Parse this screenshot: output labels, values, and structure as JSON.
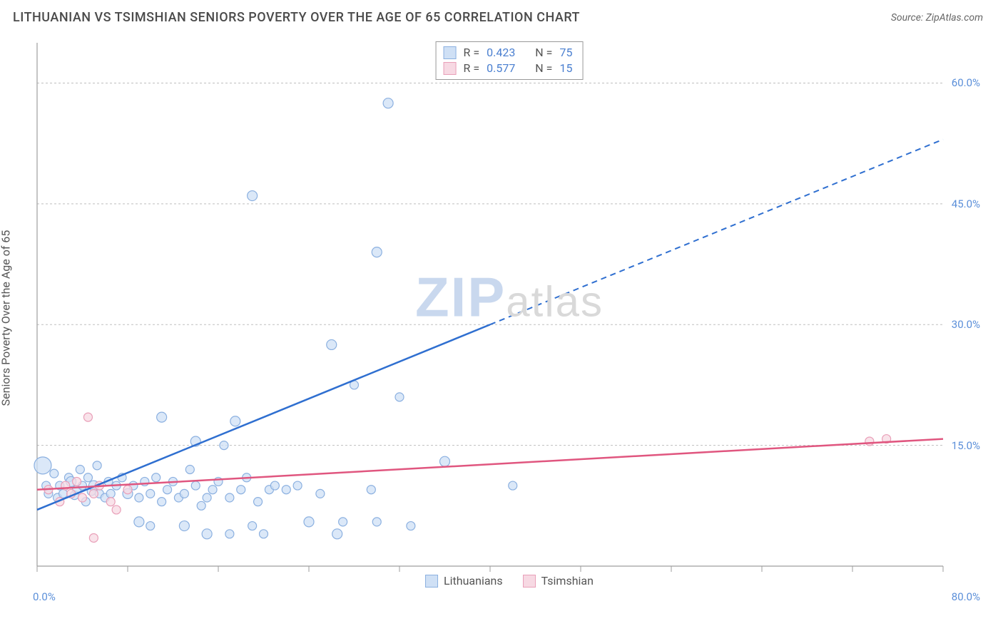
{
  "header": {
    "title": "LITHUANIAN VS TSIMSHIAN SENIORS POVERTY OVER THE AGE OF 65 CORRELATION CHART",
    "source_prefix": "Source: ",
    "source_name": "ZipAtlas.com"
  },
  "yaxis_label": "Seniors Poverty Over the Age of 65",
  "watermark": {
    "zip": "ZIP",
    "atlas": "atlas"
  },
  "chart": {
    "type": "scatter",
    "background_color": "#ffffff",
    "xlim": [
      0,
      80
    ],
    "ylim": [
      0,
      65
    ],
    "xtick_min": "0.0%",
    "xtick_max": "80.0%",
    "xtick_positions": [
      0,
      8,
      16,
      24,
      32,
      40,
      48,
      56,
      64,
      72,
      80
    ],
    "yticks": [
      {
        "v": 15,
        "label": "15.0%"
      },
      {
        "v": 30,
        "label": "30.0%"
      },
      {
        "v": 45,
        "label": "45.0%"
      },
      {
        "v": 60,
        "label": "60.0%"
      }
    ],
    "grid_color": "#bfbfbf",
    "axis_color": "#9e9e9e",
    "tick_label_color": "#5b8fd9",
    "series": [
      {
        "key": "lith",
        "label": "Lithuanians",
        "fill": "#cfe0f5",
        "stroke": "#8bb0e0",
        "line_color": "#2f6fd0",
        "r_value": "0.423",
        "n_value": "75",
        "trend": {
          "x1": 0,
          "y1": 7.0,
          "x2": 80,
          "y2": 53.0,
          "solid_until_x": 40
        },
        "points": [
          {
            "x": 0.5,
            "y": 12.5,
            "r": 12
          },
          {
            "x": 0.8,
            "y": 10.0,
            "r": 6
          },
          {
            "x": 1.0,
            "y": 9.0,
            "r": 6
          },
          {
            "x": 1.5,
            "y": 11.5,
            "r": 6
          },
          {
            "x": 1.8,
            "y": 8.5,
            "r": 6
          },
          {
            "x": 2.0,
            "y": 10.0,
            "r": 6
          },
          {
            "x": 2.3,
            "y": 9.0,
            "r": 6
          },
          {
            "x": 2.8,
            "y": 11.0,
            "r": 6
          },
          {
            "x": 3.0,
            "y": 10.5,
            "r": 7
          },
          {
            "x": 3.3,
            "y": 8.8,
            "r": 6
          },
          {
            "x": 3.5,
            "y": 9.5,
            "r": 6
          },
          {
            "x": 3.8,
            "y": 12.0,
            "r": 6
          },
          {
            "x": 4.0,
            "y": 10.0,
            "r": 6
          },
          {
            "x": 4.3,
            "y": 8.0,
            "r": 6
          },
          {
            "x": 4.5,
            "y": 11.0,
            "r": 6
          },
          {
            "x": 4.8,
            "y": 9.3,
            "r": 6
          },
          {
            "x": 5.0,
            "y": 10.0,
            "r": 7
          },
          {
            "x": 5.3,
            "y": 12.5,
            "r": 6
          },
          {
            "x": 5.5,
            "y": 9.0,
            "r": 6
          },
          {
            "x": 6.0,
            "y": 8.5,
            "r": 6
          },
          {
            "x": 6.3,
            "y": 10.5,
            "r": 6
          },
          {
            "x": 6.5,
            "y": 9.0,
            "r": 6
          },
          {
            "x": 7.0,
            "y": 10.0,
            "r": 6
          },
          {
            "x": 7.5,
            "y": 11.0,
            "r": 6
          },
          {
            "x": 8.0,
            "y": 9.0,
            "r": 7
          },
          {
            "x": 8.5,
            "y": 10.0,
            "r": 6
          },
          {
            "x": 9.0,
            "y": 5.5,
            "r": 7
          },
          {
            "x": 9.0,
            "y": 8.5,
            "r": 6
          },
          {
            "x": 9.5,
            "y": 10.5,
            "r": 6
          },
          {
            "x": 10.0,
            "y": 9.0,
            "r": 6
          },
          {
            "x": 10.0,
            "y": 5.0,
            "r": 6
          },
          {
            "x": 10.5,
            "y": 11.0,
            "r": 6
          },
          {
            "x": 11.0,
            "y": 8.0,
            "r": 6
          },
          {
            "x": 11.0,
            "y": 18.5,
            "r": 7
          },
          {
            "x": 11.5,
            "y": 9.5,
            "r": 6
          },
          {
            "x": 12.0,
            "y": 10.5,
            "r": 6
          },
          {
            "x": 12.5,
            "y": 8.5,
            "r": 6
          },
          {
            "x": 13.0,
            "y": 9.0,
            "r": 6
          },
          {
            "x": 13.0,
            "y": 5.0,
            "r": 7
          },
          {
            "x": 13.5,
            "y": 12.0,
            "r": 6
          },
          {
            "x": 14.0,
            "y": 10.0,
            "r": 6
          },
          {
            "x": 14.0,
            "y": 15.5,
            "r": 7
          },
          {
            "x": 14.5,
            "y": 7.5,
            "r": 6
          },
          {
            "x": 15.0,
            "y": 4.0,
            "r": 7
          },
          {
            "x": 15.0,
            "y": 8.5,
            "r": 6
          },
          {
            "x": 15.5,
            "y": 9.5,
            "r": 6
          },
          {
            "x": 16.0,
            "y": 10.5,
            "r": 6
          },
          {
            "x": 16.5,
            "y": 15.0,
            "r": 6
          },
          {
            "x": 17.0,
            "y": 8.5,
            "r": 6
          },
          {
            "x": 17.0,
            "y": 4.0,
            "r": 6
          },
          {
            "x": 17.5,
            "y": 18.0,
            "r": 7
          },
          {
            "x": 18.0,
            "y": 9.5,
            "r": 6
          },
          {
            "x": 18.5,
            "y": 11.0,
            "r": 6
          },
          {
            "x": 19.0,
            "y": 5.0,
            "r": 6
          },
          {
            "x": 19.0,
            "y": 46.0,
            "r": 7
          },
          {
            "x": 19.5,
            "y": 8.0,
            "r": 6
          },
          {
            "x": 20.0,
            "y": 4.0,
            "r": 6
          },
          {
            "x": 20.5,
            "y": 9.5,
            "r": 6
          },
          {
            "x": 21.0,
            "y": 10.0,
            "r": 6
          },
          {
            "x": 22.0,
            "y": 9.5,
            "r": 6
          },
          {
            "x": 23.0,
            "y": 10.0,
            "r": 6
          },
          {
            "x": 24.0,
            "y": 5.5,
            "r": 7
          },
          {
            "x": 25.0,
            "y": 9.0,
            "r": 6
          },
          {
            "x": 26.0,
            "y": 27.5,
            "r": 7
          },
          {
            "x": 26.5,
            "y": 4.0,
            "r": 7
          },
          {
            "x": 27.0,
            "y": 5.5,
            "r": 6
          },
          {
            "x": 28.0,
            "y": 22.5,
            "r": 6
          },
          {
            "x": 29.5,
            "y": 9.5,
            "r": 6
          },
          {
            "x": 30.0,
            "y": 5.5,
            "r": 6
          },
          {
            "x": 30.0,
            "y": 39.0,
            "r": 7
          },
          {
            "x": 31.0,
            "y": 57.5,
            "r": 7
          },
          {
            "x": 32.0,
            "y": 21.0,
            "r": 6
          },
          {
            "x": 33.0,
            "y": 5.0,
            "r": 6
          },
          {
            "x": 36.0,
            "y": 13.0,
            "r": 7
          },
          {
            "x": 42.0,
            "y": 10.0,
            "r": 6
          }
        ]
      },
      {
        "key": "tsim",
        "label": "Tsimshian",
        "fill": "#f7d9e3",
        "stroke": "#e99fb8",
        "line_color": "#e0567f",
        "r_value": "0.577",
        "n_value": "15",
        "trend": {
          "x1": 0,
          "y1": 9.5,
          "x2": 80,
          "y2": 15.8,
          "solid_until_x": 80
        },
        "points": [
          {
            "x": 1.0,
            "y": 9.5,
            "r": 6
          },
          {
            "x": 2.0,
            "y": 8.0,
            "r": 6
          },
          {
            "x": 2.5,
            "y": 10.0,
            "r": 6
          },
          {
            "x": 3.0,
            "y": 9.0,
            "r": 6
          },
          {
            "x": 3.5,
            "y": 10.5,
            "r": 6
          },
          {
            "x": 4.0,
            "y": 8.5,
            "r": 6
          },
          {
            "x": 4.5,
            "y": 18.5,
            "r": 6
          },
          {
            "x": 5.0,
            "y": 9.0,
            "r": 6
          },
          {
            "x": 5.5,
            "y": 10.0,
            "r": 6
          },
          {
            "x": 5.0,
            "y": 3.5,
            "r": 6
          },
          {
            "x": 6.5,
            "y": 8.0,
            "r": 6
          },
          {
            "x": 7.0,
            "y": 7.0,
            "r": 6
          },
          {
            "x": 8.0,
            "y": 9.5,
            "r": 6
          },
          {
            "x": 73.5,
            "y": 15.5,
            "r": 6
          },
          {
            "x": 75.0,
            "y": 15.8,
            "r": 6
          }
        ]
      }
    ],
    "legend_top": {
      "r_label": "R =",
      "n_label": "N ="
    },
    "legend_bottom": [
      {
        "label": "Lithuanians",
        "fill": "#cfe0f5",
        "stroke": "#8bb0e0"
      },
      {
        "label": "Tsimshian",
        "fill": "#f7d9e3",
        "stroke": "#e99fb8"
      }
    ]
  }
}
